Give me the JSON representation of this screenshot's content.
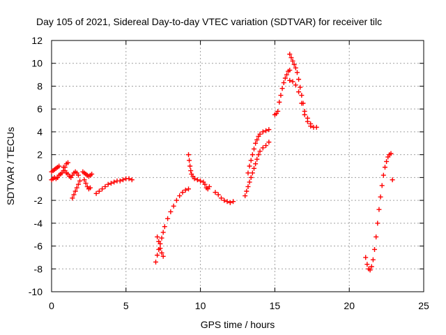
{
  "chart_data": {
    "type": "scatter",
    "title": "Day 105 of 2021, Sidereal Day-to-day VTEC variation (SDTVAR) for receiver tilc",
    "xlabel": "GPS time / hours",
    "ylabel": "SDTVAR / TECUs",
    "xlim": [
      0,
      25
    ],
    "ylim": [
      -10,
      12
    ],
    "xticks": [
      0,
      5,
      10,
      15,
      20,
      25
    ],
    "yticks": [
      -10,
      -8,
      -6,
      -4,
      -2,
      0,
      2,
      4,
      6,
      8,
      10,
      12
    ],
    "grid": true,
    "marker": "+",
    "color": "#ff0000",
    "segments": [
      {
        "x": [
          0.0,
          0.1,
          0.2,
          0.3,
          0.4,
          0.5
        ],
        "y": [
          0.5,
          0.6,
          0.7,
          0.8,
          0.9,
          1.0
        ]
      },
      {
        "x": [
          0.0,
          0.1,
          0.2,
          0.3,
          0.4
        ],
        "y": [
          -0.2,
          -0.1,
          0.0,
          -0.1,
          0.0
        ]
      },
      {
        "x": [
          0.4,
          0.5,
          0.6,
          0.7,
          0.8,
          0.9,
          1.0,
          1.1
        ],
        "y": [
          0.0,
          0.2,
          0.3,
          0.4,
          0.6,
          0.9,
          1.2,
          1.3
        ]
      },
      {
        "x": [
          0.8,
          0.9,
          1.0,
          1.1,
          1.2,
          1.3
        ],
        "y": [
          0.9,
          0.6,
          0.4,
          0.3,
          0.1,
          0.0
        ]
      },
      {
        "x": [
          1.4,
          1.5,
          1.6,
          1.7,
          1.8
        ],
        "y": [
          0.2,
          0.4,
          0.5,
          0.4,
          0.2
        ]
      },
      {
        "x": [
          1.4,
          1.5,
          1.6,
          1.7,
          1.8,
          1.9
        ],
        "y": [
          -1.8,
          -1.5,
          -1.2,
          -0.9,
          -0.6,
          -0.3
        ]
      },
      {
        "x": [
          2.1,
          2.2,
          2.3,
          2.4,
          2.5,
          2.6,
          2.7
        ],
        "y": [
          0.5,
          0.4,
          0.3,
          0.2,
          0.1,
          0.2,
          0.3
        ]
      },
      {
        "x": [
          2.2,
          2.3,
          2.4,
          2.5,
          2.6
        ],
        "y": [
          -0.2,
          -0.5,
          -0.8,
          -1.0,
          -0.9
        ]
      },
      {
        "x": [
          3.0,
          3.2,
          3.4,
          3.6,
          3.8,
          4.0,
          4.2,
          4.4,
          4.6,
          4.8,
          5.0,
          5.2,
          5.4
        ],
        "y": [
          -1.4,
          -1.2,
          -1.0,
          -0.8,
          -0.6,
          -0.5,
          -0.4,
          -0.3,
          -0.3,
          -0.2,
          -0.1,
          -0.1,
          -0.2
        ]
      },
      {
        "x": [
          7.0,
          7.1,
          7.2,
          7.3,
          7.4,
          7.5,
          7.6,
          7.8,
          8.0,
          8.2,
          8.4,
          8.6,
          8.8,
          9.0,
          9.2
        ],
        "y": [
          -7.4,
          -6.8,
          -6.3,
          -5.8,
          -5.3,
          -4.8,
          -4.3,
          -3.6,
          -3.0,
          -2.5,
          -2.0,
          -1.6,
          -1.3,
          -1.1,
          -1.0
        ]
      },
      {
        "x": [
          7.1,
          7.2,
          7.3,
          7.4,
          7.5
        ],
        "y": [
          -5.2,
          -5.6,
          -6.2,
          -6.6,
          -6.9
        ]
      },
      {
        "x": [
          9.2,
          9.25,
          9.3,
          9.35,
          9.4,
          9.5,
          9.6,
          9.8,
          10.0,
          10.2
        ],
        "y": [
          2.0,
          1.5,
          1.0,
          0.6,
          0.3,
          0.1,
          -0.1,
          -0.2,
          -0.3,
          -0.4
        ]
      },
      {
        "x": [
          10.3,
          10.4,
          10.5,
          10.6
        ],
        "y": [
          -0.6,
          -0.9,
          -1.0,
          -0.8
        ]
      },
      {
        "x": [
          11.0,
          11.2,
          11.4,
          11.6,
          11.8,
          12.0,
          12.2
        ],
        "y": [
          -1.3,
          -1.5,
          -1.8,
          -2.0,
          -2.1,
          -2.2,
          -2.1
        ]
      },
      {
        "x": [
          13.0,
          13.1,
          13.2,
          13.3,
          13.4,
          13.5,
          13.6,
          13.7,
          13.8,
          13.9,
          14.0,
          14.2,
          14.4,
          14.6
        ],
        "y": [
          -1.6,
          -1.2,
          -0.8,
          -0.4,
          0.0,
          0.4,
          0.8,
          1.2,
          1.6,
          2.0,
          2.3,
          2.6,
          2.8,
          3.1
        ]
      },
      {
        "x": [
          13.2,
          13.3,
          13.4,
          13.5,
          13.6,
          13.7,
          13.8,
          13.9,
          14.0,
          14.2,
          14.4,
          14.6
        ],
        "y": [
          0.4,
          1.0,
          1.5,
          2.0,
          2.5,
          3.0,
          3.3,
          3.6,
          3.8,
          4.0,
          4.1,
          4.2
        ]
      },
      {
        "x": [
          15.0,
          15.1,
          15.2,
          15.3,
          15.4,
          15.5,
          15.6,
          15.7,
          15.8,
          15.9,
          16.0
        ],
        "y": [
          5.5,
          5.6,
          5.8,
          6.6,
          7.2,
          7.8,
          8.3,
          8.7,
          9.0,
          9.3,
          9.4
        ]
      },
      {
        "x": [
          16.0,
          16.1,
          16.2,
          16.3,
          16.4,
          16.5,
          16.6,
          16.7,
          16.8,
          16.9,
          17.0,
          17.2,
          17.4,
          17.6,
          17.8
        ],
        "y": [
          10.8,
          10.5,
          10.2,
          9.9,
          9.6,
          9.2,
          8.6,
          7.9,
          7.2,
          6.5,
          5.8,
          5.2,
          4.7,
          4.4,
          4.4
        ]
      },
      {
        "x": [
          16.0,
          16.2,
          16.4,
          16.6,
          16.8,
          17.0,
          17.2,
          17.4
        ],
        "y": [
          8.5,
          8.4,
          8.1,
          7.5,
          6.5,
          5.5,
          4.9,
          4.5
        ]
      },
      {
        "x": [
          21.1,
          21.2,
          21.3,
          21.4,
          21.5,
          21.6,
          21.7,
          21.8,
          21.9,
          22.0,
          22.1,
          22.2,
          22.3,
          22.4,
          22.5,
          22.6,
          22.7,
          22.8
        ],
        "y": [
          -7.0,
          -7.6,
          -8.0,
          -8.1,
          -7.8,
          -7.2,
          -6.3,
          -5.2,
          -4.0,
          -2.8,
          -1.7,
          -0.7,
          0.2,
          0.9,
          1.4,
          1.8,
          2.0,
          2.1
        ]
      },
      {
        "x": [
          22.9
        ],
        "y": [
          -0.2
        ]
      }
    ]
  }
}
